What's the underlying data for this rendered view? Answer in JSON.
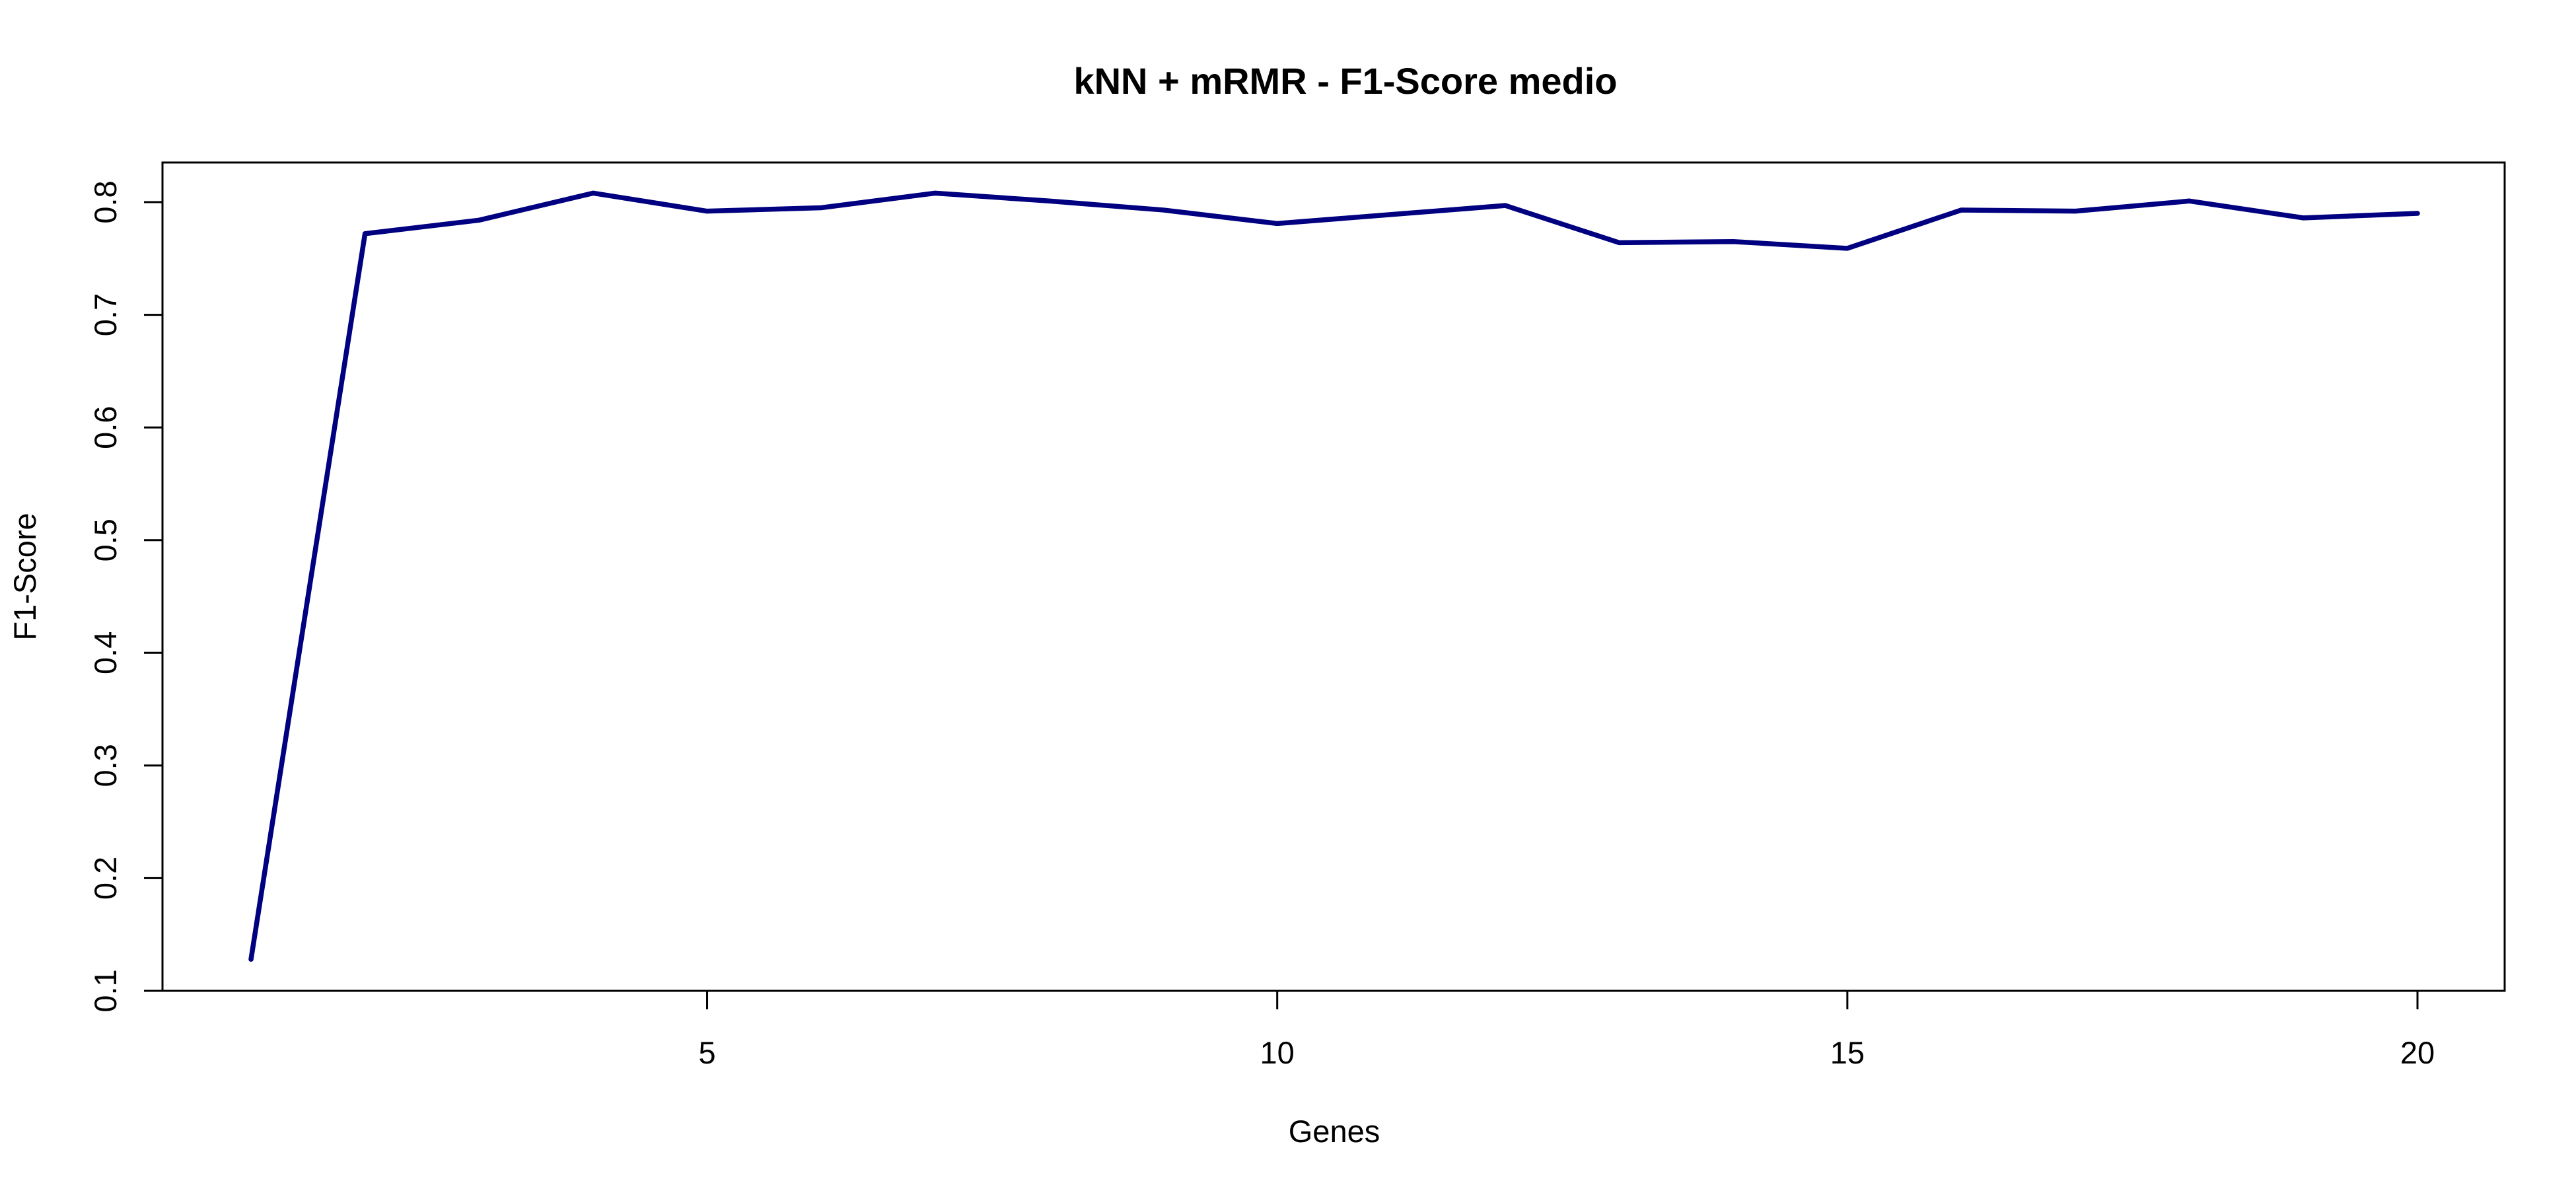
{
  "chart_data": {
    "type": "line",
    "title": "kNN + mRMR - F1-Score medio",
    "xlabel": "Genes",
    "ylabel": "F1-Score",
    "xlim": [
      1,
      20
    ],
    "ylim": [
      0.1,
      0.8
    ],
    "x_ticks": [
      5,
      10,
      15,
      20
    ],
    "y_ticks": [
      0.1,
      0.2,
      0.3,
      0.4,
      0.5,
      0.6,
      0.7,
      0.8
    ],
    "grid": false,
    "series": [
      {
        "color": "#000080",
        "x": [
          1,
          2,
          3,
          4,
          5,
          6,
          7,
          8,
          9,
          10,
          11,
          12,
          13,
          14,
          15,
          16,
          17,
          18,
          19,
          20
        ],
        "values": [
          0.128,
          0.772,
          0.784,
          0.808,
          0.792,
          0.795,
          0.808,
          0.801,
          0.793,
          0.781,
          0.789,
          0.797,
          0.764,
          0.765,
          0.759,
          0.793,
          0.792,
          0.801,
          0.786,
          0.79
        ]
      }
    ]
  }
}
